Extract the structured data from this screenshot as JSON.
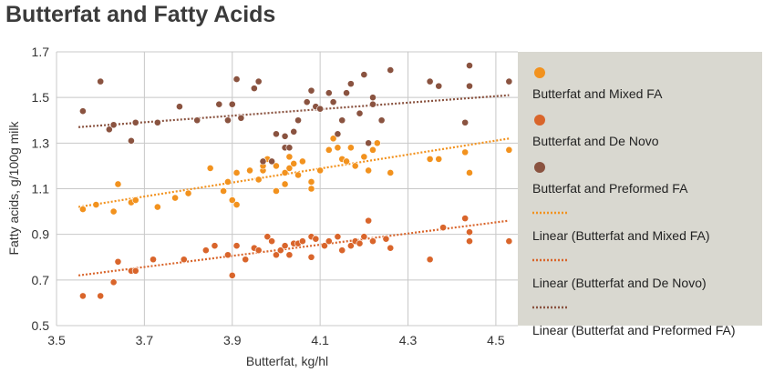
{
  "title": "Butterfat and Fatty Acids",
  "chart_data": {
    "type": "scatter",
    "xlabel": "Butterfat, kg/hl",
    "ylabel": "Fatty acids, g/100g milk",
    "xlim": [
      3.5,
      4.55
    ],
    "ylim": [
      0.5,
      1.7
    ],
    "x_ticks": [
      "3.5",
      "3.7",
      "3.9",
      "4.1",
      "4.3",
      "4.5"
    ],
    "y_ticks": [
      "0.5",
      "0.7",
      "0.9",
      "1.1",
      "1.3",
      "1.5",
      "1.7"
    ],
    "grid": true,
    "legend_position": "right",
    "colors": {
      "mixed": "#f2921e",
      "denovo": "#d9652b",
      "preformed": "#8a5340",
      "plot_bg": "#ffffff",
      "legend_bg": "#d9d8d0",
      "grid": "#c8c8c8"
    },
    "series": [
      {
        "name": "Butterfat and Mixed FA",
        "key": "mixed",
        "points": [
          [
            3.56,
            1.01
          ],
          [
            3.59,
            1.03
          ],
          [
            3.63,
            1.0
          ],
          [
            3.64,
            1.12
          ],
          [
            3.67,
            1.04
          ],
          [
            3.68,
            1.05
          ],
          [
            3.73,
            1.02
          ],
          [
            3.77,
            1.06
          ],
          [
            3.8,
            1.08
          ],
          [
            3.85,
            1.19
          ],
          [
            3.88,
            1.09
          ],
          [
            3.89,
            1.13
          ],
          [
            3.9,
            1.05
          ],
          [
            3.91,
            1.03
          ],
          [
            3.91,
            1.17
          ],
          [
            3.94,
            1.18
          ],
          [
            3.96,
            1.14
          ],
          [
            3.97,
            1.18
          ],
          [
            3.97,
            1.2
          ],
          [
            3.98,
            1.23
          ],
          [
            4.0,
            1.09
          ],
          [
            4.0,
            1.2
          ],
          [
            4.02,
            1.12
          ],
          [
            4.02,
            1.17
          ],
          [
            4.03,
            1.24
          ],
          [
            4.03,
            1.19
          ],
          [
            4.04,
            1.21
          ],
          [
            4.05,
            1.16
          ],
          [
            4.06,
            1.22
          ],
          [
            4.08,
            1.1
          ],
          [
            4.08,
            1.13
          ],
          [
            4.1,
            1.18
          ],
          [
            4.12,
            1.27
          ],
          [
            4.13,
            1.32
          ],
          [
            4.14,
            1.28
          ],
          [
            4.15,
            1.23
          ],
          [
            4.16,
            1.22
          ],
          [
            4.17,
            1.28
          ],
          [
            4.18,
            1.2
          ],
          [
            4.2,
            1.24
          ],
          [
            4.21,
            1.18
          ],
          [
            4.22,
            1.27
          ],
          [
            4.23,
            1.3
          ],
          [
            4.26,
            1.17
          ],
          [
            4.35,
            1.23
          ],
          [
            4.37,
            1.23
          ],
          [
            4.43,
            1.26
          ],
          [
            4.44,
            1.17
          ],
          [
            4.53,
            1.27
          ]
        ]
      },
      {
        "name": "Butterfat and De Novo",
        "key": "denovo",
        "points": [
          [
            3.56,
            0.63
          ],
          [
            3.6,
            0.63
          ],
          [
            3.63,
            0.69
          ],
          [
            3.64,
            0.78
          ],
          [
            3.67,
            0.74
          ],
          [
            3.68,
            0.74
          ],
          [
            3.72,
            0.79
          ],
          [
            3.79,
            0.79
          ],
          [
            3.84,
            0.83
          ],
          [
            3.86,
            0.85
          ],
          [
            3.89,
            0.81
          ],
          [
            3.9,
            0.72
          ],
          [
            3.91,
            0.85
          ],
          [
            3.93,
            0.79
          ],
          [
            3.95,
            0.84
          ],
          [
            3.96,
            0.83
          ],
          [
            3.98,
            0.89
          ],
          [
            3.99,
            0.87
          ],
          [
            4.0,
            0.81
          ],
          [
            4.01,
            0.83
          ],
          [
            4.02,
            0.85
          ],
          [
            4.03,
            0.81
          ],
          [
            4.04,
            0.86
          ],
          [
            4.05,
            0.86
          ],
          [
            4.06,
            0.87
          ],
          [
            4.08,
            0.8
          ],
          [
            4.08,
            0.89
          ],
          [
            4.09,
            0.88
          ],
          [
            4.11,
            0.85
          ],
          [
            4.12,
            0.87
          ],
          [
            4.14,
            0.89
          ],
          [
            4.15,
            0.83
          ],
          [
            4.17,
            0.85
          ],
          [
            4.18,
            0.87
          ],
          [
            4.19,
            0.86
          ],
          [
            4.2,
            0.89
          ],
          [
            4.21,
            0.96
          ],
          [
            4.22,
            0.87
          ],
          [
            4.25,
            0.88
          ],
          [
            4.26,
            0.84
          ],
          [
            4.35,
            0.79
          ],
          [
            4.38,
            0.93
          ],
          [
            4.43,
            0.97
          ],
          [
            4.44,
            0.91
          ],
          [
            4.44,
            0.87
          ],
          [
            4.53,
            0.87
          ]
        ]
      },
      {
        "name": "Butterfat and Preformed FA",
        "key": "preformed",
        "points": [
          [
            3.56,
            1.44
          ],
          [
            3.6,
            1.57
          ],
          [
            3.62,
            1.36
          ],
          [
            3.63,
            1.38
          ],
          [
            3.67,
            1.31
          ],
          [
            3.68,
            1.39
          ],
          [
            3.73,
            1.39
          ],
          [
            3.78,
            1.46
          ],
          [
            3.82,
            1.4
          ],
          [
            3.87,
            1.47
          ],
          [
            3.89,
            1.4
          ],
          [
            3.9,
            1.47
          ],
          [
            3.91,
            1.58
          ],
          [
            3.92,
            1.41
          ],
          [
            3.95,
            1.54
          ],
          [
            3.96,
            1.57
          ],
          [
            3.97,
            1.22
          ],
          [
            3.99,
            1.22
          ],
          [
            4.0,
            1.34
          ],
          [
            4.02,
            1.28
          ],
          [
            4.02,
            1.33
          ],
          [
            4.03,
            1.28
          ],
          [
            4.04,
            1.35
          ],
          [
            4.05,
            1.4
          ],
          [
            4.07,
            1.48
          ],
          [
            4.08,
            1.53
          ],
          [
            4.09,
            1.46
          ],
          [
            4.1,
            1.45
          ],
          [
            4.12,
            1.52
          ],
          [
            4.13,
            1.48
          ],
          [
            4.14,
            1.34
          ],
          [
            4.15,
            1.4
          ],
          [
            4.16,
            1.52
          ],
          [
            4.17,
            1.56
          ],
          [
            4.19,
            1.43
          ],
          [
            4.2,
            1.6
          ],
          [
            4.21,
            1.3
          ],
          [
            4.22,
            1.47
          ],
          [
            4.22,
            1.5
          ],
          [
            4.24,
            1.4
          ],
          [
            4.26,
            1.62
          ],
          [
            4.35,
            1.57
          ],
          [
            4.37,
            1.55
          ],
          [
            4.43,
            1.39
          ],
          [
            4.44,
            1.55
          ],
          [
            4.44,
            1.64
          ],
          [
            4.53,
            1.57
          ]
        ]
      },
      {
        "name": "Linear (Butterfat and Mixed FA)",
        "key": "mixed",
        "line": [
          [
            3.55,
            1.02
          ],
          [
            4.53,
            1.32
          ]
        ]
      },
      {
        "name": "Linear (Butterfat and De Novo)",
        "key": "denovo",
        "line": [
          [
            3.55,
            0.72
          ],
          [
            4.53,
            0.96
          ]
        ]
      },
      {
        "name": "Linear (Butterfat and Preformed FA)",
        "key": "preformed",
        "line": [
          [
            3.55,
            1.37
          ],
          [
            4.53,
            1.51
          ]
        ]
      }
    ]
  }
}
